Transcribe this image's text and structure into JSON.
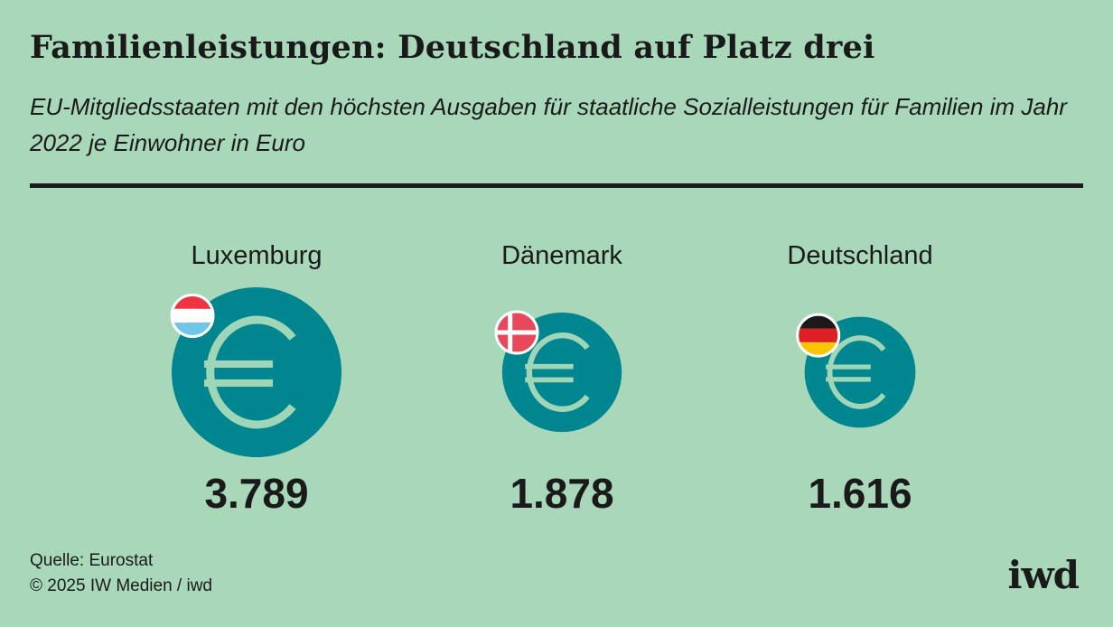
{
  "header": {
    "title": "Familienleistungen: Deutschland auf Platz drei",
    "subtitle": "EU-Mitgliedsstaaten mit den höchsten Ausgaben für staatliche Sozialleistungen für Familien im Jahr 2022 je Einwohner in Euro"
  },
  "chart_data": {
    "type": "bubble",
    "categories": [
      "Luxemburg",
      "Dänemark",
      "Deutschland"
    ],
    "values": [
      3789,
      1878,
      1616
    ],
    "value_labels": [
      "3.789",
      "1.878",
      "1.616"
    ],
    "unit": "Euro je Einwohner",
    "flags": [
      "luxembourg-flag",
      "denmark-flag",
      "germany-flag"
    ],
    "icon": "euro-icon"
  },
  "colors": {
    "background": "#a8d8b9",
    "bubble": "#00868f",
    "euro_symbol": "#9fd6b8",
    "text": "#1a1a1a"
  },
  "footer": {
    "source": "Quelle: Eurostat",
    "copyright": "© 2025 IW Medien / iwd",
    "logo": "iwd"
  }
}
